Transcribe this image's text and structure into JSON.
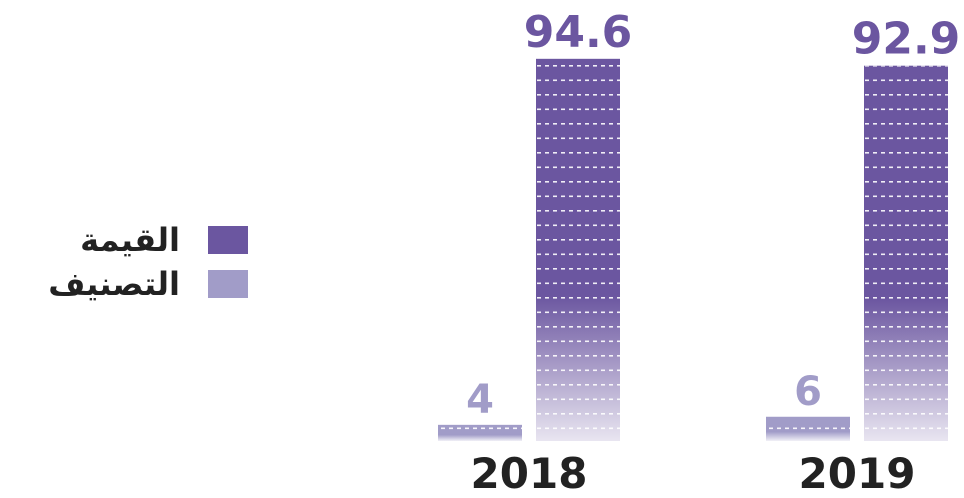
{
  "chart_data": {
    "type": "bar",
    "categories": [
      "2018",
      "2019"
    ],
    "series": [
      {
        "name": "التصنيف",
        "values": [
          4,
          6
        ],
        "color": "#a19cc8"
      },
      {
        "name": "القيمة",
        "values": [
          94.6,
          92.9
        ],
        "color": "#6b56a0"
      }
    ],
    "value_labels": {
      "series_0": [
        "4",
        "6"
      ],
      "series_1": [
        "94.6",
        "92.9"
      ]
    },
    "ylim": [
      0,
      100
    ],
    "legend": {
      "placement": "left",
      "items": [
        {
          "label": "القيمة",
          "color": "#6b56a0"
        },
        {
          "label": "التصنيف",
          "color": "#a19cc8"
        }
      ]
    },
    "grid": false
  }
}
